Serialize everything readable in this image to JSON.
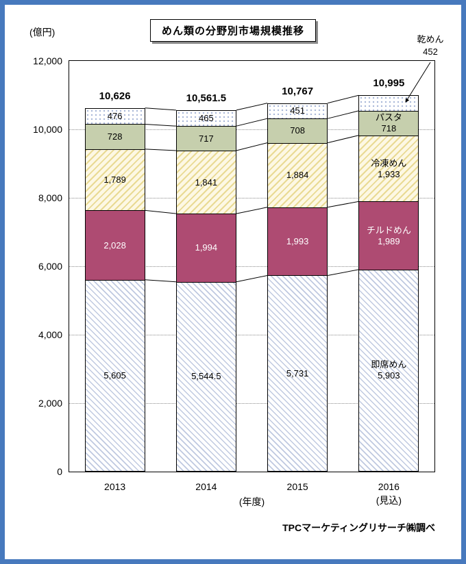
{
  "title": "めん類の分野別市場規模推移",
  "y_axis": {
    "unit_label": "(億円)",
    "max": 12000,
    "step": 2000,
    "tick_labels": [
      "12,000",
      "10,000",
      "8,000",
      "6,000",
      "4,000",
      "2,000",
      "0"
    ]
  },
  "x_axis": {
    "axis_label": "(年度)",
    "categories": [
      "2013",
      "2014",
      "2015",
      "2016"
    ],
    "forecast_note": "(見込)"
  },
  "annotation": {
    "label": "乾めん",
    "value": "452"
  },
  "source": "TPCマーケティングリサーチ㈱調べ",
  "colors": {
    "frame_border": "#4779bd",
    "chilled_fill": "#ae4b72",
    "pasta_fill": "#c6cfad",
    "hatch_blue_line": "#bfc9e0",
    "hatch_yellow_line": "#e9da93",
    "hatch_yellow_bg": "#fdf8e4",
    "dot_blue": "#a9b8d8",
    "gridline": "#8a8a8a"
  },
  "chart_data": {
    "type": "bar",
    "stacked": true,
    "title": "めん類の分野別市場規模推移",
    "ylabel": "(億円)",
    "xlabel": "(年度)",
    "ylim": [
      0,
      12000
    ],
    "grid": true,
    "categories": [
      "2013",
      "2014",
      "2015",
      "2016(見込)"
    ],
    "series": [
      {
        "name": "即席めん",
        "values": [
          5605,
          5544.5,
          5731,
          5903
        ],
        "value_labels": [
          "5,605",
          "5,544.5",
          "5,731",
          "5,903"
        ],
        "fill": "hatch-blue",
        "label_color": "#000000",
        "show_name_on_last_bar": true
      },
      {
        "name": "チルドめん",
        "values": [
          2028,
          1994,
          1993,
          1989
        ],
        "value_labels": [
          "2,028",
          "1,994",
          "1,993",
          "1,989"
        ],
        "fill": "solid-rose",
        "label_color": "#ffffff",
        "show_name_on_last_bar": true
      },
      {
        "name": "冷凍めん",
        "values": [
          1789,
          1841,
          1884,
          1933
        ],
        "value_labels": [
          "1,789",
          "1,841",
          "1,884",
          "1,933"
        ],
        "fill": "hatch-yellow",
        "label_color": "#000000",
        "show_name_on_last_bar": true
      },
      {
        "name": "パスタ",
        "values": [
          728,
          717,
          708,
          718
        ],
        "value_labels": [
          "728",
          "717",
          "708",
          "718"
        ],
        "fill": "solid-green",
        "label_color": "#000000",
        "show_name_on_last_bar": true
      },
      {
        "name": "乾めん",
        "values": [
          476,
          465,
          451,
          452
        ],
        "value_labels": [
          "476",
          "465",
          "451",
          ""
        ],
        "fill": "dots-blue",
        "label_color": "#000000",
        "show_name_on_last_bar": false
      }
    ],
    "totals": [
      "10,626",
      "10,561.5",
      "10,767",
      "10,995"
    ],
    "legend_position": "labels-on-last-bar-and-top-annotation"
  }
}
